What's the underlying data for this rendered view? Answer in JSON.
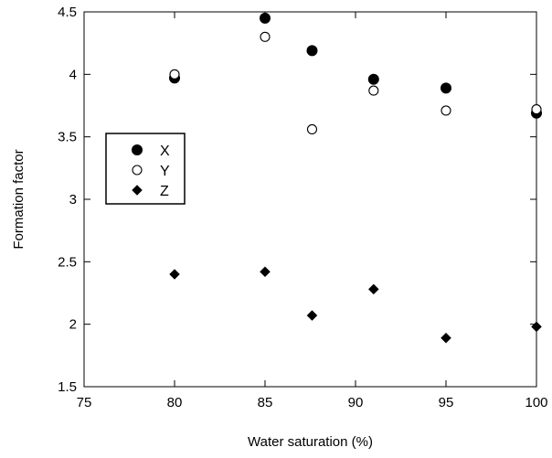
{
  "chart_data": {
    "type": "scatter",
    "title": "",
    "xlabel": "Water saturation (%)",
    "ylabel": "Formation factor",
    "xlim": [
      75,
      100
    ],
    "ylim": [
      1.5,
      4.5
    ],
    "xticks": [
      75,
      80,
      85,
      90,
      95,
      100
    ],
    "yticks": [
      1.5,
      2,
      2.5,
      3,
      3.5,
      4,
      4.5
    ],
    "xtick_labels": [
      "75",
      "80",
      "85",
      "90",
      "95",
      "100"
    ],
    "ytick_labels": [
      "1.5",
      "2",
      "2.5",
      "3",
      "3.5",
      "4",
      "4.5"
    ],
    "grid": false,
    "legend_position": "left",
    "series": [
      {
        "name": "X",
        "marker": "filled-circle",
        "color": "#000000",
        "x": [
          80,
          85,
          87.6,
          91,
          95,
          100
        ],
        "y": [
          3.97,
          4.45,
          4.19,
          3.96,
          3.89,
          3.69
        ]
      },
      {
        "name": "Y",
        "marker": "open-circle",
        "color": "#000000",
        "x": [
          80,
          85,
          87.6,
          91,
          95,
          100
        ],
        "y": [
          4.0,
          4.3,
          3.56,
          3.87,
          3.71,
          3.72
        ]
      },
      {
        "name": "Z",
        "marker": "filled-diamond",
        "color": "#000000",
        "x": [
          80,
          85,
          87.6,
          91,
          95,
          100
        ],
        "y": [
          2.4,
          2.42,
          2.07,
          2.28,
          1.89,
          1.98
        ]
      }
    ]
  }
}
